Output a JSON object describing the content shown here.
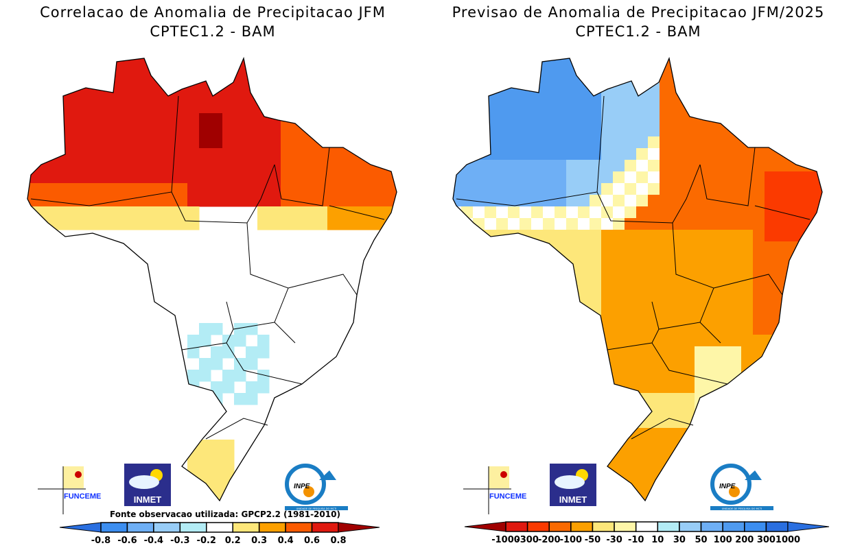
{
  "maps": [
    {
      "title_line1": "Correlacao de Anomalia de Precipitacao JFM",
      "title_line2": "CPTEC1.2 - BAM",
      "source_note": "Fonte observacao utilizada: GPCP2.2 (1981-2010)",
      "colorbar": {
        "labels": [
          "-0.8",
          "-0.6",
          "-0.4",
          "-0.3",
          "-0.2",
          "0.2",
          "0.3",
          "0.4",
          "0.6",
          "0.8"
        ],
        "colors": [
          "#2a6fe0",
          "#3c8ef0",
          "#6eaff5",
          "#98cdf7",
          "#b3ecf5",
          "#ffffff",
          "#fde77a",
          "#fca000",
          "#fb5b00",
          "#e0190f",
          "#a00000"
        ]
      }
    },
    {
      "title_line1": "Previsao de Anomalia de Precipitacao JFM/2025",
      "title_line2": "CPTEC1.2 - BAM",
      "colorbar": {
        "labels": [
          "-1000",
          "-300",
          "-200",
          "-100",
          "-50",
          "-30",
          "-10",
          "10",
          "30",
          "50",
          "100",
          "200",
          "300",
          "1000"
        ],
        "colors": [
          "#a00000",
          "#e0190f",
          "#fb3a00",
          "#fb6a00",
          "#fca000",
          "#fde77a",
          "#fef6a8",
          "#ffffff",
          "#b3ecf5",
          "#98cdf7",
          "#6eaff5",
          "#4f9aef",
          "#3c8ef0",
          "#2a6fe0",
          "#2a6fe0"
        ]
      }
    }
  ],
  "logos": {
    "funceme": "FUNCEME",
    "inmet": "INMET",
    "inpe": "INPE",
    "inpe_caption": "UNIDADE DE PESQUISA DO MCTI"
  }
}
